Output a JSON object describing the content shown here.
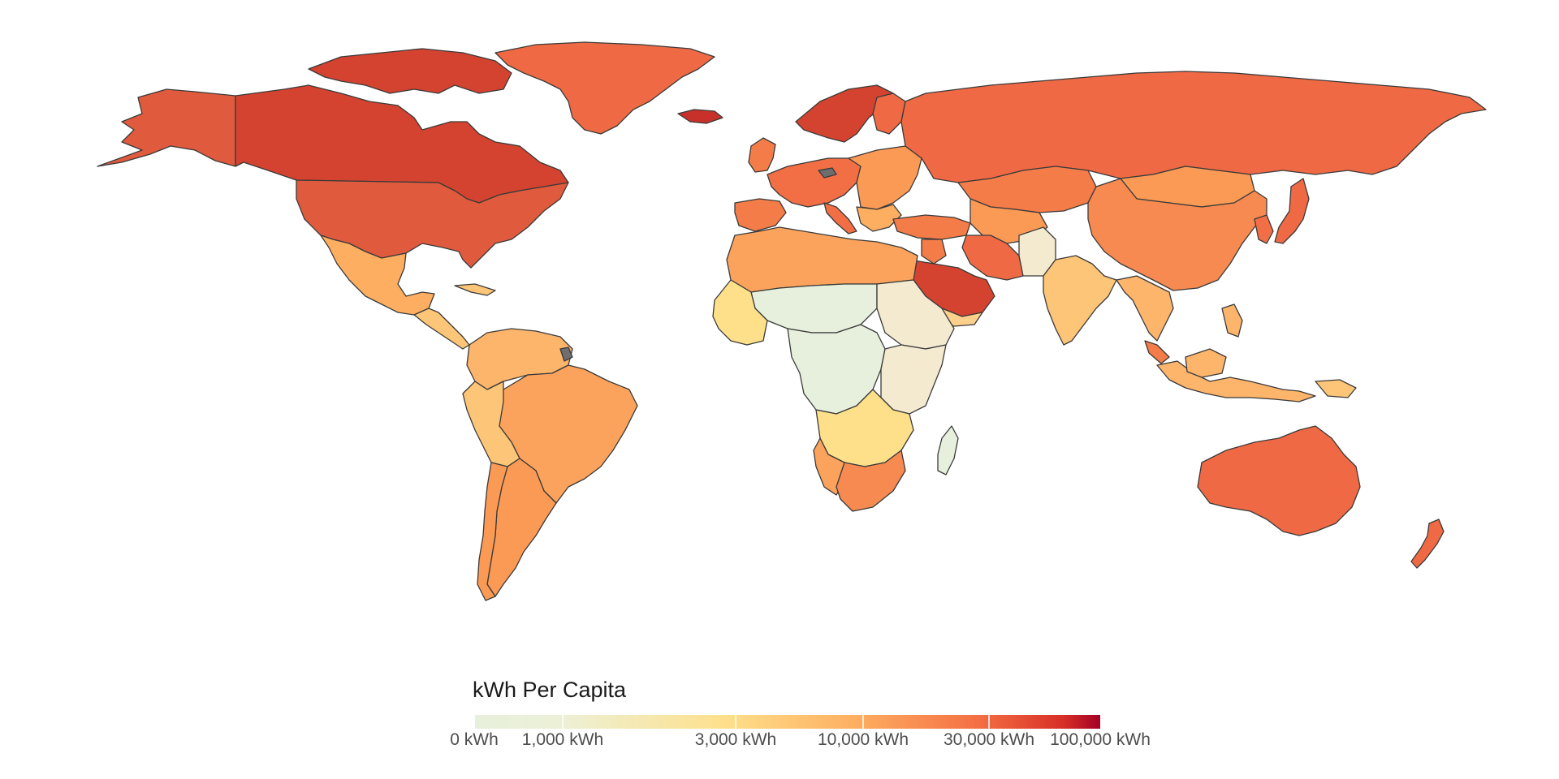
{
  "legend": {
    "title": "kWh Per Capita",
    "ticks": [
      {
        "label": "0 kWh",
        "value": 0
      },
      {
        "label": "1,000 kWh",
        "value": 1000
      },
      {
        "label": "3,000 kWh",
        "value": 3000
      },
      {
        "label": "10,000 kWh",
        "value": 10000
      },
      {
        "label": "30,000 kWh",
        "value": 30000
      },
      {
        "label": "100,000 kWh",
        "value": 100000
      }
    ],
    "scale": "log-like",
    "range": [
      0,
      100000
    ],
    "colors": [
      "#e7f0dc",
      "#f3ead0",
      "#fee08b",
      "#fdae61",
      "#f46d43",
      "#d73027",
      "#a50026"
    ]
  },
  "colors": {
    "no_data": "#6e6e6e",
    "border": "#3a3a3a",
    "background": "#ffffff"
  },
  "regions": [
    {
      "name": "Canada",
      "category": "30,000 kWh"
    },
    {
      "name": "United States",
      "category": "10,000-30,000 kWh"
    },
    {
      "name": "Alaska",
      "category": "10,000-30,000 kWh"
    },
    {
      "name": "Greenland",
      "category": "10,000-30,000 kWh"
    },
    {
      "name": "Iceland",
      "category": "30,000-100,000 kWh"
    },
    {
      "name": "Mexico",
      "category": "3,000-10,000 kWh"
    },
    {
      "name": "Central America",
      "category": "1,000-3,000 kWh"
    },
    {
      "name": "South America North",
      "category": "3,000-10,000 kWh"
    },
    {
      "name": "Brazil",
      "category": "3,000-10,000 kWh"
    },
    {
      "name": "Argentina",
      "category": "10,000 kWh"
    },
    {
      "name": "Chile",
      "category": "10,000 kWh"
    },
    {
      "name": "Europe West",
      "category": "10,000-30,000 kWh"
    },
    {
      "name": "Scandinavia",
      "category": "30,000 kWh"
    },
    {
      "name": "Eastern Europe",
      "category": "10,000 kWh"
    },
    {
      "name": "Russia",
      "category": "10,000-30,000 kWh"
    },
    {
      "name": "Kazakhstan",
      "category": "10,000-30,000 kWh"
    },
    {
      "name": "Mongolia",
      "category": "10,000 kWh"
    },
    {
      "name": "China",
      "category": "10,000 kWh"
    },
    {
      "name": "Saudi Arabia",
      "category": "30,000-100,000 kWh"
    },
    {
      "name": "Iran",
      "category": "10,000-30,000 kWh"
    },
    {
      "name": "India",
      "category": "3,000 kWh"
    },
    {
      "name": "Southeast Asia",
      "category": "3,000-10,000 kWh"
    },
    {
      "name": "Indonesia",
      "category": "3,000-10,000 kWh"
    },
    {
      "name": "Japan",
      "category": "10,000-30,000 kWh"
    },
    {
      "name": "Australia",
      "category": "10,000-30,000 kWh"
    },
    {
      "name": "New Zealand",
      "category": "10,000-30,000 kWh"
    },
    {
      "name": "North Africa",
      "category": "3,000-10,000 kWh"
    },
    {
      "name": "Sahel",
      "category": "0-1,000 kWh"
    },
    {
      "name": "Central Africa",
      "category": "0-1,000 kWh"
    },
    {
      "name": "East Africa",
      "category": "0-1,000 kWh"
    },
    {
      "name": "Southern Africa",
      "category": "3,000-10,000 kWh"
    },
    {
      "name": "South Africa",
      "category": "10,000 kWh"
    },
    {
      "name": "Madagascar",
      "category": "0-1,000 kWh"
    }
  ]
}
